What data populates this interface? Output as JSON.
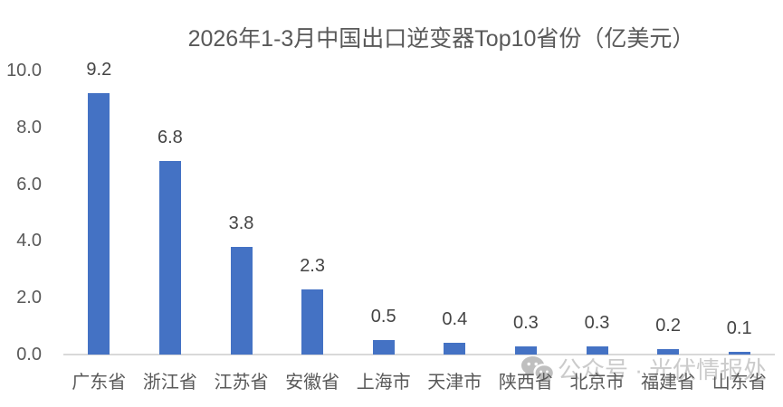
{
  "title": "2026年1-3月中国出口逆变器Top10省份（亿美元）",
  "watermark": {
    "icon": "wechat-icon",
    "text": "公众号 · 光伏情报处"
  },
  "colors": {
    "bar": "#4472C4",
    "axis_line": "#D9D9D9",
    "tick_text": "#595959",
    "data_label_text": "#444444",
    "watermark_text": "#C6C6C6",
    "background": "#FFFFFF"
  },
  "chart_data": {
    "type": "bar",
    "title": "2026年1-3月中国出口逆变器Top10省份（亿美元）",
    "categories": [
      "广东省",
      "浙江省",
      "江苏省",
      "安徽省",
      "上海市",
      "天津市",
      "陕西省",
      "北京市",
      "福建省",
      "山东省"
    ],
    "values": [
      9.2,
      6.8,
      3.8,
      2.3,
      0.5,
      0.4,
      0.3,
      0.3,
      0.2,
      0.1
    ],
    "data_labels": [
      "9.2",
      "6.8",
      "3.8",
      "2.3",
      "0.5",
      "0.4",
      "0.3",
      "0.3",
      "0.2",
      "0.1"
    ],
    "xlabel": "",
    "ylabel": "",
    "ylim": [
      0,
      10
    ],
    "yticks": [
      "10.0",
      "8.0",
      "6.0",
      "4.0",
      "2.0",
      "0.0"
    ],
    "ytick_values": [
      10,
      8,
      6,
      4,
      2,
      0
    ],
    "grid": false,
    "legend": false,
    "bar_color": "#4472C4"
  }
}
